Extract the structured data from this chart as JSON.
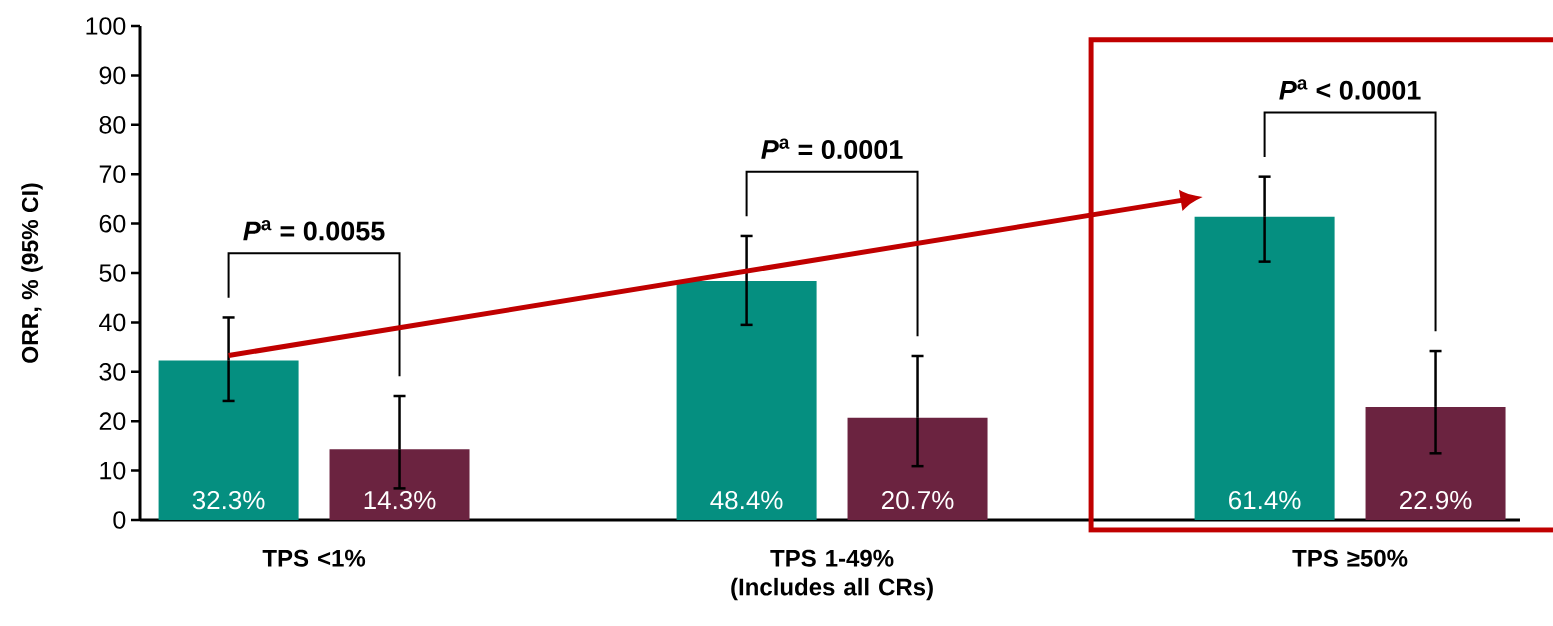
{
  "chart_data": {
    "type": "bar",
    "ylabel": "ORR, % (95% CI)",
    "categories": [
      "TPS <1%",
      "TPS 1-49% (Includes all CRs)",
      "TPS ≥50%"
    ],
    "ylim": [
      0,
      100
    ],
    "yticks": [
      0,
      10,
      20,
      30,
      40,
      50,
      60,
      70,
      80,
      90,
      100
    ],
    "series": [
      {
        "color": "#058f80",
        "values": [
          32.3,
          48.4,
          61.4
        ],
        "value_labels": [
          "32.3%",
          "48.4%",
          "61.4%"
        ],
        "errors": [
          [
            24.1,
            41.0
          ],
          [
            39.5,
            57.5
          ],
          [
            52.3,
            69.5
          ]
        ]
      },
      {
        "color": "#6b2340",
        "values": [
          14.3,
          20.7,
          22.9
        ],
        "value_labels": [
          "14.3%",
          "20.7%",
          "22.9%"
        ],
        "errors": [
          [
            6.4,
            25.1
          ],
          [
            10.9,
            33.2
          ],
          [
            13.5,
            34.2
          ]
        ]
      }
    ],
    "annotations": [
      "*P*$^{a}$ = 0.0055",
      "*P*$^{a}$ = 0.0001",
      "*P*$^{a}$ < 0.0001"
    ]
  }
}
